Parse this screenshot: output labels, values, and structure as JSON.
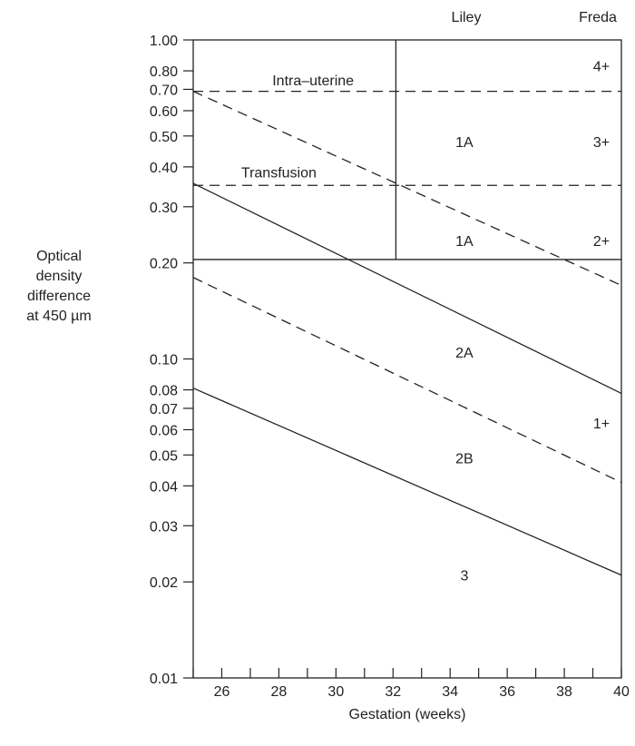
{
  "chart_data": {
    "type": "line",
    "title": "",
    "xlabel": "Gestation (weeks)",
    "ylabel": [
      "Optical",
      "density",
      "difference",
      "at 450 µm"
    ],
    "x_scale": "linear",
    "y_scale": "log",
    "xlim": [
      25,
      40
    ],
    "ylim": [
      0.01,
      1.0
    ],
    "x_ticks": [
      26,
      28,
      30,
      32,
      34,
      36,
      38,
      40
    ],
    "x_minor_ticks": [
      25,
      27,
      29,
      31,
      33,
      35,
      37,
      39
    ],
    "y_ticks": [
      {
        "value": 1.0,
        "label": "1.00"
      },
      {
        "value": 0.8,
        "label": "0.80"
      },
      {
        "value": 0.7,
        "label": "0.70"
      },
      {
        "value": 0.6,
        "label": "0.60"
      },
      {
        "value": 0.5,
        "label": "0.50"
      },
      {
        "value": 0.4,
        "label": "0.40"
      },
      {
        "value": 0.3,
        "label": "0.30"
      },
      {
        "value": 0.2,
        "label": "0.20"
      },
      {
        "value": 0.1,
        "label": "0.10"
      },
      {
        "value": 0.08,
        "label": "0.08"
      },
      {
        "value": 0.07,
        "label": "0.07"
      },
      {
        "value": 0.06,
        "label": "0.06"
      },
      {
        "value": 0.05,
        "label": "0.05"
      },
      {
        "value": 0.04,
        "label": "0.04"
      },
      {
        "value": 0.03,
        "label": "0.03"
      },
      {
        "value": 0.02,
        "label": "0.02"
      },
      {
        "value": 0.01,
        "label": "0.01"
      }
    ],
    "column_headers": {
      "liley": "Liley",
      "freda": "Freda"
    },
    "series": [
      {
        "style": "dashed",
        "x": [
          25,
          40
        ],
        "y": [
          0.69,
          0.69
        ]
      },
      {
        "style": "dashed",
        "x": [
          25,
          40
        ],
        "y": [
          0.35,
          0.35
        ]
      },
      {
        "style": "dashed",
        "x": [
          25,
          40
        ],
        "y": [
          0.69,
          0.17
        ]
      },
      {
        "style": "solid",
        "x": [
          25,
          40
        ],
        "y": [
          0.205,
          0.205
        ]
      },
      {
        "style": "solid",
        "x": [
          32.1,
          32.1
        ],
        "y": [
          0.205,
          1.0
        ]
      },
      {
        "style": "solid",
        "x": [
          25,
          40
        ],
        "y": [
          0.355,
          0.078
        ]
      },
      {
        "style": "dashed",
        "x": [
          25,
          40
        ],
        "y": [
          0.18,
          0.041
        ]
      },
      {
        "style": "solid",
        "x": [
          25,
          40
        ],
        "y": [
          0.081,
          0.021
        ]
      }
    ],
    "annotations": [
      {
        "text": "Intra–uterine",
        "x": 29.2,
        "y": 0.75
      },
      {
        "text": "Transfusion",
        "x": 28.0,
        "y": 0.385
      },
      {
        "text": "1A",
        "x": 34.5,
        "y": 0.48
      },
      {
        "text": "1A",
        "x": 34.5,
        "y": 0.235
      },
      {
        "text": "2A",
        "x": 34.5,
        "y": 0.105
      },
      {
        "text": "2B",
        "x": 34.5,
        "y": 0.049
      },
      {
        "text": "3",
        "x": 34.5,
        "y": 0.021
      },
      {
        "text": "4+",
        "x": 39.3,
        "y": 0.83
      },
      {
        "text": "3+",
        "x": 39.3,
        "y": 0.48
      },
      {
        "text": "2+",
        "x": 39.3,
        "y": 0.235
      },
      {
        "text": "1+",
        "x": 39.3,
        "y": 0.063
      }
    ],
    "grid": false,
    "legend": "none"
  }
}
